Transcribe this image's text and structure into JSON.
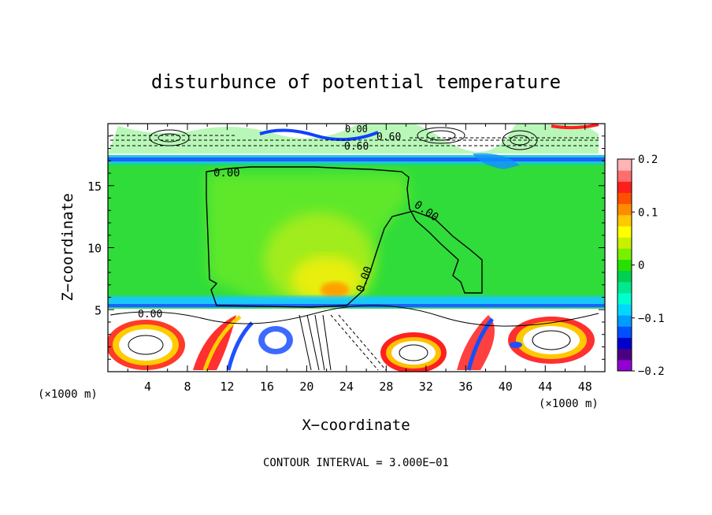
{
  "chart_data": {
    "type": "heatmap",
    "title": "disturbunce of potential temperature",
    "xlabel": "X−coordinate",
    "ylabel": "Z−coordinate",
    "x_unit_left": "(×1000 m)",
    "x_unit_right": "(×1000 m)",
    "footer": "CONTOUR INTERVAL = 3.000E−01",
    "xlim": [
      0,
      50
    ],
    "ylim": [
      0,
      20
    ],
    "x_ticks": [
      4,
      8,
      12,
      16,
      20,
      24,
      28,
      32,
      36,
      40,
      44,
      48
    ],
    "x_tick_labels": [
      "4",
      "8",
      "12",
      "16",
      "20",
      "24",
      "28",
      "32",
      "36",
      "40",
      "44",
      "48"
    ],
    "y_ticks": [
      5,
      10,
      15
    ],
    "y_tick_labels": [
      "5",
      "10",
      "15"
    ],
    "colorbar": {
      "range": [
        -0.2,
        0.2
      ],
      "tick_values": [
        0.2,
        0.1,
        0,
        -0.1,
        -0.2
      ],
      "tick_labels": [
        "0.2",
        "0.1",
        "0",
        "−0.1",
        "−0.2"
      ],
      "colors": [
        "#9400d3",
        "#4b0082",
        "#0000cd",
        "#0050ff",
        "#009cff",
        "#00d8ff",
        "#00ffd0",
        "#00e890",
        "#00d050",
        "#28e000",
        "#78f000",
        "#c8f000",
        "#ffff00",
        "#ffc800",
        "#ff8c00",
        "#ff5000",
        "#ff1e1e",
        "#ff6e6e",
        "#ffb4b4"
      ]
    },
    "contour_labels": [
      "0.00",
      "0.00",
      "0.00",
      "0.60",
      "0.60",
      "0.00",
      "0.00"
    ],
    "anomaly_field": [
      {
        "x": 23,
        "z": 6.8,
        "value": 0.12
      },
      {
        "x": 22,
        "z": 8.5,
        "value": 0.07
      },
      {
        "x": 21,
        "z": 12,
        "value": 0.04
      },
      {
        "x": 5,
        "z": 2.5,
        "value": 0.2
      },
      {
        "x": 10,
        "z": 2.0,
        "value": 0.15
      },
      {
        "x": 30,
        "z": 2.5,
        "value": 0.15
      },
      {
        "x": 45,
        "z": 2.2,
        "value": 0.15
      },
      {
        "x": 25,
        "z": 17,
        "value": -0.05
      },
      {
        "x": 25,
        "z": 5.8,
        "value": -0.1
      }
    ]
  }
}
